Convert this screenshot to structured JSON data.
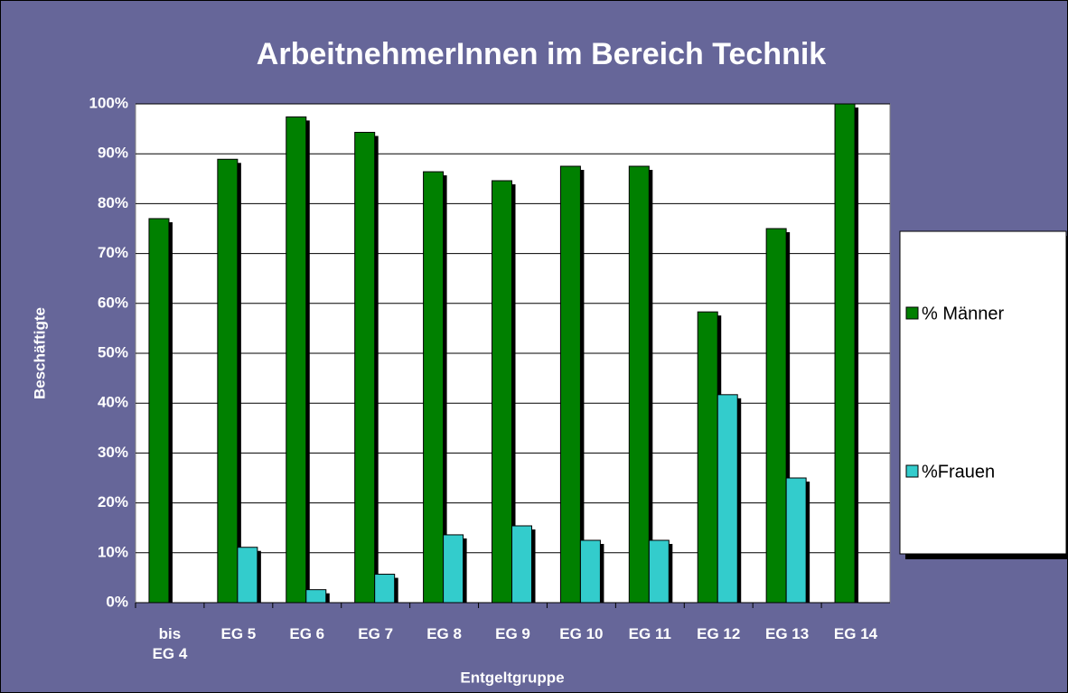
{
  "chart_data": {
    "type": "bar",
    "title": "ArbeitnehmerInnen im Bereich Technik",
    "x_label": "Entgeltgruppe",
    "y_label": "Beschäftigte",
    "categories": [
      "bis EG 4",
      "EG 5",
      "EG 6",
      "EG 7",
      "EG 8",
      "EG 9",
      "EG 10",
      "EG 11",
      "EG 12",
      "EG 13",
      "EG 14"
    ],
    "series": [
      {
        "name": "% Männer",
        "color": "#008000",
        "values": [
          77,
          88.9,
          97.4,
          94.3,
          86.4,
          84.6,
          87.5,
          87.5,
          58.3,
          75,
          100
        ]
      },
      {
        "name": "%Frauen",
        "color": "#33cccc",
        "values": [
          0,
          11.1,
          2.6,
          5.7,
          13.6,
          15.4,
          12.5,
          12.5,
          41.7,
          25,
          0
        ]
      }
    ],
    "ylim": [
      0,
      100
    ],
    "yticks": [
      {
        "value": 0,
        "label": "0%"
      },
      {
        "value": 10,
        "label": "10%"
      },
      {
        "value": 20,
        "label": "20%"
      },
      {
        "value": 30,
        "label": "30%"
      },
      {
        "value": 40,
        "label": "40%"
      },
      {
        "value": 50,
        "label": "50%"
      },
      {
        "value": 60,
        "label": "60%"
      },
      {
        "value": 70,
        "label": "70%"
      },
      {
        "value": 80,
        "label": "80%"
      },
      {
        "value": 90,
        "label": "90%"
      },
      {
        "value": 100,
        "label": "100%"
      }
    ],
    "grid": true,
    "legend": "right"
  }
}
